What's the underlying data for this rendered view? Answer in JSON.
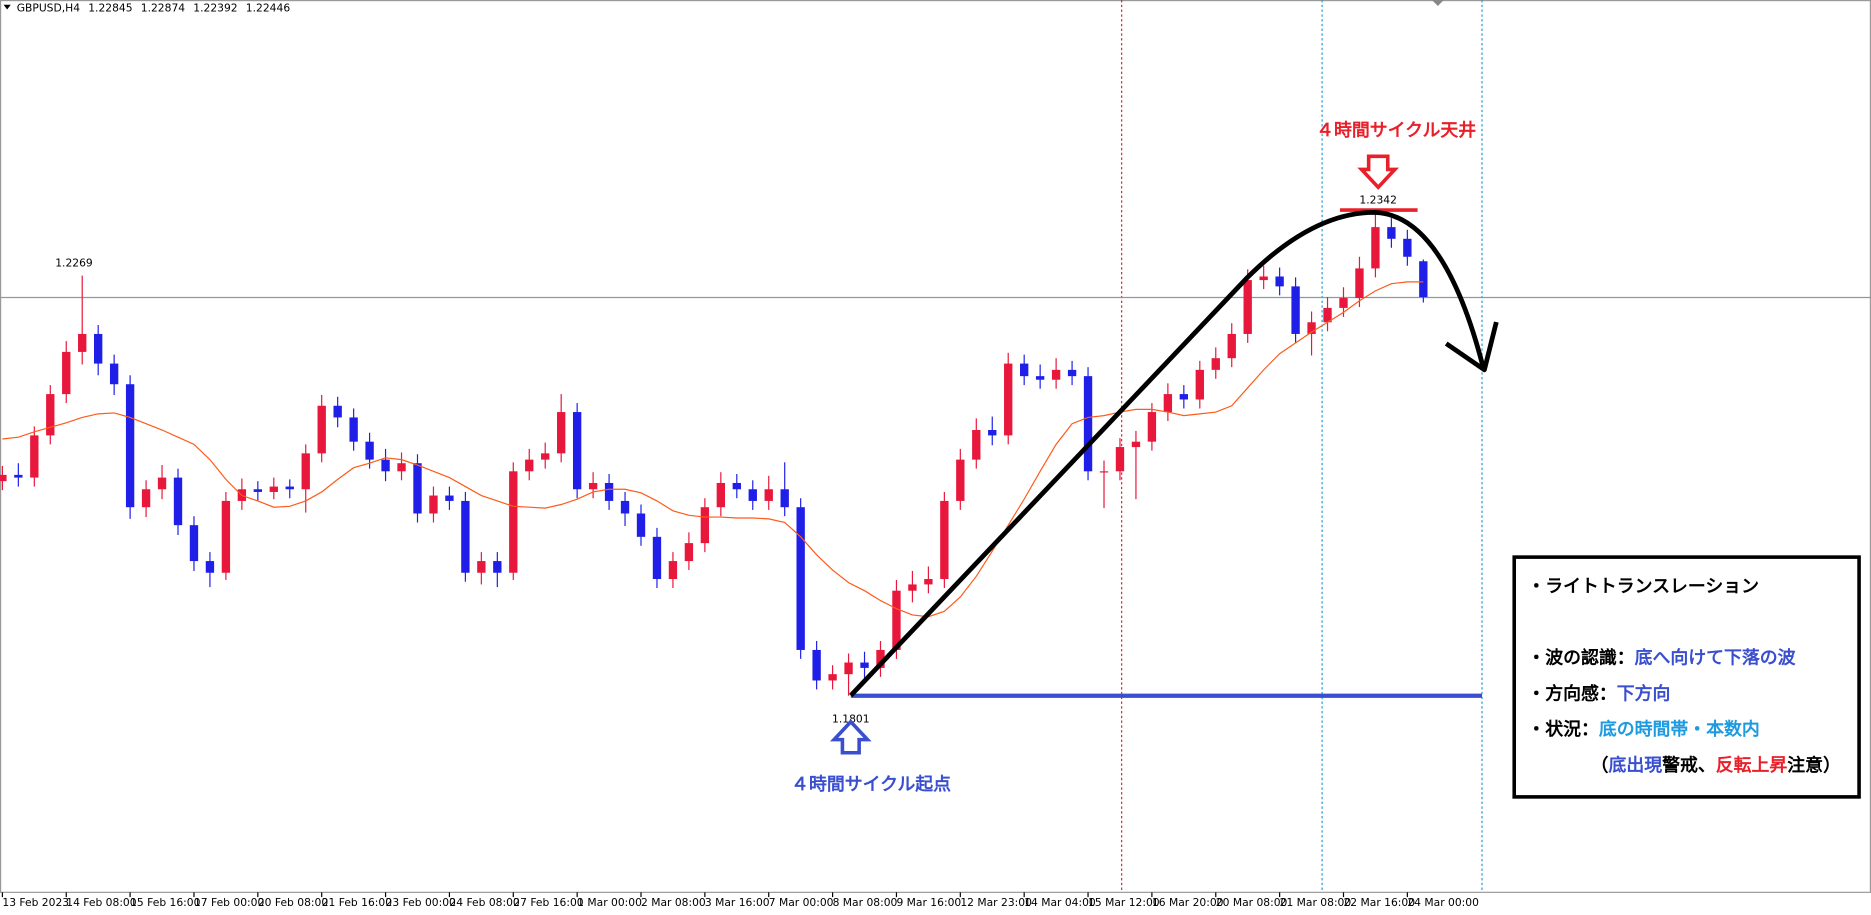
{
  "chart_data": {
    "type": "candlestick",
    "header": {
      "symbol": "GBPUSD,H4",
      "open": 1.22845,
      "high": 1.22874,
      "low": 1.22392,
      "close": 1.22446
    },
    "up_color": "#e8173c",
    "down_color": "#1f1fe8",
    "ma_color": "#ff5a1a",
    "ylim": [
      1.1582,
      1.2576
    ],
    "xticks": [
      {
        "value": 0,
        "label": "13 Feb 2023"
      },
      {
        "value": 4,
        "label": "14 Feb 08:00"
      },
      {
        "value": 8,
        "label": "15 Feb 16:00"
      },
      {
        "value": 12,
        "label": "17 Feb 00:00"
      },
      {
        "value": 16,
        "label": "20 Feb 08:00"
      },
      {
        "value": 20,
        "label": "21 Feb 16:00"
      },
      {
        "value": 24,
        "label": "23 Feb 00:00"
      },
      {
        "value": 28,
        "label": "24 Feb 08:00"
      },
      {
        "value": 32,
        "label": "27 Feb 16:00"
      },
      {
        "value": 36,
        "label": "1 Mar 00:00"
      },
      {
        "value": 40,
        "label": "2 Mar 08:00"
      },
      {
        "value": 44,
        "label": "3 Mar 16:00"
      },
      {
        "value": 48,
        "label": "7 Mar 00:00"
      },
      {
        "value": 52,
        "label": "8 Mar 08:00"
      },
      {
        "value": 56,
        "label": "9 Mar 16:00"
      },
      {
        "value": 60,
        "label": "12 Mar 23:00"
      },
      {
        "value": 64,
        "label": "14 Mar 04:00"
      },
      {
        "value": 68,
        "label": "15 Mar 12:00"
      },
      {
        "value": 72,
        "label": "16 Mar 20:00"
      },
      {
        "value": 76,
        "label": "20 Mar 08:00"
      },
      {
        "value": 80,
        "label": "21 Mar 08:00"
      },
      {
        "value": 84,
        "label": "22 Mar 16:00"
      },
      {
        "value": 88,
        "label": "24 Mar 00:00"
      }
    ],
    "open": [
      1.204,
      1.2047,
      1.2044,
      1.2091,
      1.2137,
      1.2184,
      1.2204,
      1.2171,
      1.2148,
      1.2011,
      1.2031,
      1.2044,
      1.1991,
      1.1951,
      1.1938,
      1.2018,
      1.2031,
      1.2028,
      1.2034,
      1.2031,
      1.2071,
      1.2124,
      1.2111,
      1.2084,
      1.2064,
      1.2051,
      1.206,
      1.2004,
      1.2024,
      1.2018,
      1.1938,
      1.1951,
      1.1938,
      1.2051,
      1.2064,
      1.2071,
      1.2117,
      1.2031,
      1.2038,
      1.2018,
      1.2004,
      1.1978,
      1.1931,
      1.1951,
      1.1971,
      1.2011,
      1.2038,
      1.2031,
      1.2018,
      1.2031,
      1.2011,
      1.1852,
      1.1818,
      1.1825,
      1.1838,
      1.1832,
      1.1852,
      1.1918,
      1.1925,
      1.1931,
      1.2018,
      1.2064,
      1.2097,
      1.2091,
      1.2171,
      1.2157,
      1.2153,
      1.2164,
      1.2157,
      1.2051,
      1.2051,
      1.2078,
      1.2084,
      1.2117,
      1.2137,
      1.2131,
      1.2164,
      1.2177,
      1.2204,
      1.2264,
      1.2268,
      1.2257,
      1.2204,
      1.2217,
      1.2233,
      1.2244,
      1.2277,
      1.2323,
      1.231,
      1.2285
    ],
    "high": [
      1.2057,
      1.206,
      1.2101,
      1.2147,
      1.2196,
      1.2269,
      1.2214,
      1.2181,
      1.2158,
      1.2041,
      1.2058,
      1.2054,
      1.2001,
      1.1961,
      1.2028,
      1.2043,
      1.204,
      1.2044,
      1.2042,
      1.2081,
      1.2136,
      1.2134,
      1.2121,
      1.2094,
      1.2076,
      1.2072,
      1.207,
      1.2034,
      1.2034,
      1.2028,
      1.1961,
      1.1961,
      1.2061,
      1.2076,
      1.2083,
      1.2137,
      1.2127,
      1.205,
      1.2048,
      1.2028,
      1.2014,
      1.1988,
      1.1961,
      1.1983,
      1.2021,
      1.205,
      1.2048,
      1.2041,
      1.2046,
      1.2061,
      1.2021,
      1.1862,
      1.1835,
      1.1848,
      1.185,
      1.1862,
      1.193,
      1.194,
      1.1945,
      1.2028,
      1.2076,
      1.211,
      1.2112,
      1.2183,
      1.2181,
      1.217,
      1.2177,
      1.2174,
      1.2167,
      1.2063,
      1.2088,
      1.2096,
      1.2127,
      1.2149,
      1.2147,
      1.2174,
      1.2189,
      1.2216,
      1.2276,
      1.228,
      1.2278,
      1.2267,
      1.2229,
      1.2245,
      1.2256,
      1.229,
      1.2342,
      1.2333,
      1.232,
      1.2287
    ],
    "low": [
      1.203,
      1.2034,
      1.2034,
      1.2081,
      1.2127,
      1.217,
      1.2158,
      1.2136,
      1.1998,
      1.2,
      1.202,
      1.198,
      1.194,
      1.1922,
      1.193,
      1.2008,
      1.2018,
      1.202,
      1.2021,
      1.2005,
      1.2061,
      1.21,
      1.2074,
      1.2054,
      1.204,
      1.2041,
      1.1994,
      1.1994,
      1.2008,
      1.1928,
      1.1925,
      1.1922,
      1.193,
      1.2041,
      1.2054,
      1.2061,
      1.2021,
      1.2021,
      1.2008,
      1.199,
      1.1968,
      1.1921,
      1.1921,
      1.1941,
      1.1961,
      1.2001,
      1.2021,
      1.2008,
      1.2008,
      1.2001,
      1.1842,
      1.1808,
      1.1808,
      1.1801,
      1.182,
      1.1822,
      1.1842,
      1.1905,
      1.1915,
      1.1921,
      1.2008,
      1.2054,
      1.208,
      1.2081,
      1.2147,
      1.2143,
      1.2143,
      1.2147,
      1.2041,
      1.201,
      1.2041,
      1.202,
      1.2074,
      1.2107,
      1.2121,
      1.2121,
      1.2154,
      1.2167,
      1.2194,
      1.2254,
      1.2247,
      1.2194,
      1.218,
      1.2207,
      1.2223,
      1.2234,
      1.2267,
      1.23,
      1.228,
      1.2239
    ],
    "close": [
      1.2047,
      1.2044,
      1.2091,
      1.2137,
      1.2184,
      1.2204,
      1.2171,
      1.2148,
      1.2011,
      1.2031,
      1.2044,
      1.1991,
      1.1951,
      1.1938,
      1.2018,
      1.2031,
      1.2028,
      1.2034,
      1.2031,
      1.2071,
      1.2124,
      1.2111,
      1.2084,
      1.2064,
      1.2051,
      1.206,
      1.2004,
      1.2024,
      1.2018,
      1.1938,
      1.1951,
      1.1938,
      1.2051,
      1.2064,
      1.2071,
      1.2117,
      1.2031,
      1.2038,
      1.2018,
      1.2004,
      1.1978,
      1.1931,
      1.1951,
      1.1971,
      1.2011,
      1.2038,
      1.2031,
      1.2018,
      1.2031,
      1.2011,
      1.1852,
      1.1818,
      1.1825,
      1.1838,
      1.1832,
      1.1852,
      1.1918,
      1.1925,
      1.1931,
      1.2018,
      1.2064,
      1.2097,
      1.2091,
      1.2171,
      1.2157,
      1.2153,
      1.2164,
      1.2157,
      1.2051,
      1.2051,
      1.2078,
      1.2084,
      1.2117,
      1.2137,
      1.2131,
      1.2164,
      1.2177,
      1.2204,
      1.2264,
      1.2268,
      1.2257,
      1.2204,
      1.2217,
      1.2233,
      1.2244,
      1.2277,
      1.2323,
      1.231,
      1.229,
      1.2245
    ],
    "ma": [
      1.2087,
      1.2089,
      1.2095,
      1.21,
      1.2105,
      1.2111,
      1.2115,
      1.2116,
      1.2111,
      1.2104,
      1.2097,
      1.2089,
      1.2081,
      1.2064,
      1.2042,
      1.2024,
      1.2018,
      1.2011,
      1.2012,
      1.2018,
      1.2028,
      1.2042,
      1.2055,
      1.206,
      1.2066,
      1.2064,
      1.2058,
      1.2051,
      1.2044,
      1.2034,
      1.2024,
      1.2018,
      1.2012,
      1.2011,
      1.201,
      1.2014,
      1.202,
      1.2028,
      1.2031,
      1.2031,
      1.2027,
      1.2018,
      1.2007,
      1.2002,
      1.2,
      1.2,
      1.1999,
      1.1999,
      1.1998,
      1.1994,
      1.1978,
      1.1958,
      1.1941,
      1.1927,
      1.1918,
      1.1907,
      1.1898,
      1.1891,
      1.1889,
      1.1895,
      1.1911,
      1.1934,
      1.1962,
      1.1991,
      1.202,
      1.2051,
      1.2081,
      1.2104,
      1.2111,
      1.2113,
      1.2117,
      1.212,
      1.212,
      1.2117,
      1.2113,
      1.2115,
      1.2117,
      1.2124,
      1.2144,
      1.2164,
      1.2182,
      1.2194,
      1.2206,
      1.2217,
      1.2228,
      1.2241,
      1.2252,
      1.226,
      1.2262,
      1.2262
    ],
    "price_labels": [
      1.2269,
      1.2342,
      1.1801
    ],
    "top_label": "４時間サイクル天井",
    "bottom_label": "４時間サイクル起点",
    "info_box": {
      "title": "・ライトトランスレーション",
      "lines": [
        [
          {
            "text": "・波の認識：",
            "color": "#000000"
          },
          {
            "text": "底へ向けて下落の波",
            "color": "#3a4fd0"
          }
        ],
        [
          {
            "text": "・方向感：",
            "color": "#000000"
          },
          {
            "text": "下方向",
            "color": "#3a4fd0"
          }
        ],
        [
          {
            "text": "・状況：",
            "color": "#000000"
          },
          {
            "text": "底の時間帯・本数内",
            "color": "#1e9be0"
          }
        ],
        [
          {
            "text": "（",
            "color": "#000000"
          },
          {
            "text": "底出現",
            "color": "#3a4fd0"
          },
          {
            "text": "警戒、",
            "color": "#000000"
          },
          {
            "text": "反転上昇",
            "color": "#e8202a"
          },
          {
            "text": "注意）",
            "color": "#000000"
          }
        ]
      ]
    }
  }
}
